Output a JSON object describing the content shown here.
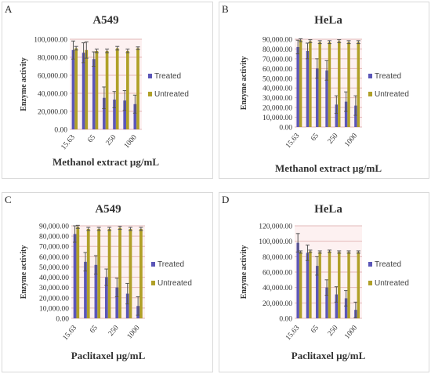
{
  "panels": [
    {
      "letter": "A"
    },
    {
      "letter": "B"
    },
    {
      "letter": "C"
    },
    {
      "letter": "D"
    }
  ],
  "colors": {
    "treated": "#5b56b8",
    "untreated": "#b0a028",
    "grid": "#e2b8b8",
    "band": "#fdf1f1",
    "error": "#555555"
  },
  "chart_data": [
    {
      "type": "bar",
      "title": "A549",
      "xlabel": "Methanol extract µg/mL",
      "ylabel": "Enzyme activity",
      "categories": [
        "15.63",
        "",
        "65",
        "",
        "250",
        "",
        "1000"
      ],
      "tick_labels": [
        "15.63",
        "65",
        "250",
        "1000"
      ],
      "ylim": [
        0,
        100000
      ],
      "yticks": [
        "0.00",
        "20,000.00",
        "40,000.00",
        "60,000.00",
        "80,000.00",
        "100,000.00"
      ],
      "legend": "right",
      "series": [
        {
          "name": "Treated",
          "values": [
            88000,
            85000,
            78000,
            35000,
            33000,
            32000,
            28000
          ],
          "errors": [
            10000,
            11000,
            8000,
            12000,
            9000,
            11000,
            10000
          ]
        },
        {
          "name": "Untreated",
          "values": [
            90000,
            88000,
            87000,
            87000,
            90000,
            87000,
            90000
          ],
          "errors": [
            2000,
            9000,
            2000,
            2000,
            2000,
            2000,
            1500
          ]
        }
      ]
    },
    {
      "type": "bar",
      "title": "HeLa",
      "xlabel": "Methanol extract µg/mL",
      "ylabel": "Enzyme activity",
      "categories": [
        "15.63",
        "",
        "65",
        "",
        "250",
        "",
        "1000"
      ],
      "tick_labels": [
        "15.63",
        "65",
        "250",
        "1000"
      ],
      "ylim": [
        0,
        90000
      ],
      "yticks": [
        "0.00",
        "10,000.00",
        "20,000.00",
        "30,000.00",
        "40,000.00",
        "50,000.00",
        "60,000.00",
        "70,000.00",
        "80,000.00",
        "90,000.00"
      ],
      "legend": "right",
      "series": [
        {
          "name": "Treated",
          "values": [
            82000,
            78000,
            60000,
            58000,
            23000,
            26000,
            22000
          ],
          "errors": [
            7000,
            8000,
            10000,
            10000,
            9000,
            10000,
            10000
          ]
        },
        {
          "name": "Untreated",
          "values": [
            89000,
            88000,
            87000,
            87000,
            88000,
            87000,
            87000
          ],
          "errors": [
            1500,
            1500,
            1500,
            1500,
            1500,
            1500,
            1500
          ]
        }
      ]
    },
    {
      "type": "bar",
      "title": "A549",
      "xlabel": "Paclitaxel µg/mL",
      "ylabel": "Enzyme activity",
      "categories": [
        "15.63",
        "",
        "65",
        "",
        "250",
        "",
        "1000"
      ],
      "tick_labels": [
        "15.63",
        "65",
        "250",
        "1000"
      ],
      "ylim": [
        0,
        90000
      ],
      "yticks": [
        "0.00",
        "10,000.00",
        "20,000.00",
        "30,000.00",
        "40,000.00",
        "50,000.00",
        "60,000.00",
        "70,000.00",
        "80,000.00",
        "90,000.00"
      ],
      "legend": "right",
      "series": [
        {
          "name": "Treated",
          "values": [
            82000,
            55000,
            52000,
            40000,
            30000,
            24000,
            12000
          ],
          "errors": [
            8000,
            9000,
            9000,
            8000,
            9000,
            10000,
            9000
          ]
        },
        {
          "name": "Untreated",
          "values": [
            89000,
            87000,
            87000,
            87000,
            88000,
            87000,
            87000
          ],
          "errors": [
            1500,
            1500,
            1500,
            1500,
            1500,
            1500,
            1500
          ]
        }
      ]
    },
    {
      "type": "bar",
      "title": "HeLa",
      "xlabel": "Paclitaxel µg/mL",
      "ylabel": "Enzyme activity",
      "categories": [
        "15.63",
        "",
        "65",
        "",
        "250",
        "",
        "1000"
      ],
      "tick_labels": [
        "15.63",
        "65",
        "250",
        "1000"
      ],
      "ylim": [
        0,
        120000
      ],
      "yticks": [
        "0.00",
        "20,000.00",
        "40,000.00",
        "60,000.00",
        "80,000.00",
        "100,000.00",
        "120,000.00"
      ],
      "legend": "right",
      "series": [
        {
          "name": "Treated",
          "values": [
            98000,
            85000,
            68000,
            40000,
            31000,
            26000,
            11000
          ],
          "errors": [
            12000,
            10000,
            12000,
            10000,
            10000,
            10000,
            10000
          ]
        },
        {
          "name": "Untreated",
          "values": [
            86000,
            87000,
            86000,
            87000,
            86000,
            86000,
            86000
          ],
          "errors": [
            1500,
            1500,
            1500,
            1500,
            1500,
            1500,
            1500
          ]
        }
      ]
    }
  ]
}
